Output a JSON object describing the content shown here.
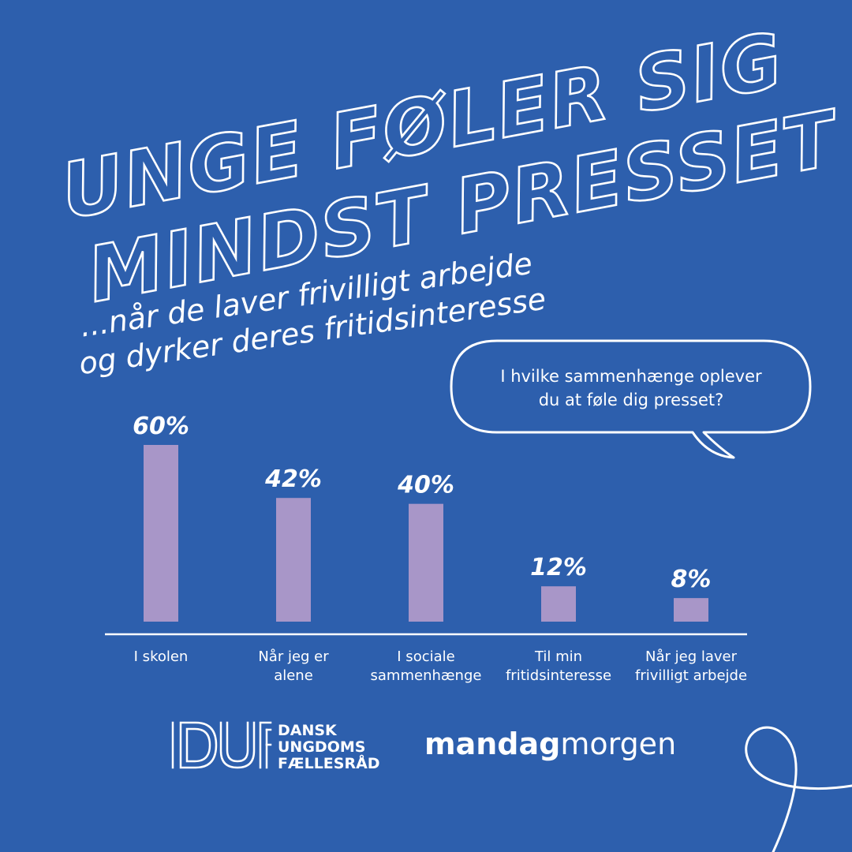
{
  "headline": {
    "line1": "UNGE FØLER SIG",
    "line2": "MINDST PRESSET"
  },
  "subtitle": {
    "line1": "...når de laver frivilligt arbejde",
    "line2": "og dyrker deres fritidsinteresse"
  },
  "question": {
    "line1": "I hvilke sammenhænge oplever",
    "line2": "du at føle dig presset?"
  },
  "chart_data": {
    "type": "bar",
    "categories": [
      "I skolen",
      "Når jeg er alene",
      "I sociale sammenhænge",
      "Til min fritidsinteresse",
      "Når jeg laver frivilligt arbejde"
    ],
    "category_lines": [
      [
        "I skolen"
      ],
      [
        "Når jeg er",
        "alene"
      ],
      [
        "I sociale",
        "sammenhænge"
      ],
      [
        "Til min",
        "fritidsinteresse"
      ],
      [
        "Når jeg laver",
        "frivilligt arbejde"
      ]
    ],
    "values": [
      60,
      42,
      40,
      12,
      8
    ],
    "value_labels": [
      "60%",
      "42%",
      "40%",
      "12%",
      "8%"
    ],
    "unit": "%",
    "ylim": [
      0,
      60
    ],
    "grid": false,
    "bar_color": "#a896c8"
  },
  "logos": {
    "duf_mark": "DUF",
    "duf_lines": [
      "DANSK",
      "UNGDOMS",
      "FÆLLESRÅD"
    ],
    "mm_bold": "mandag",
    "mm_light": "morgen"
  },
  "colors": {
    "background": "#2d5fad",
    "foreground": "#ffffff",
    "bar": "#a896c8"
  }
}
